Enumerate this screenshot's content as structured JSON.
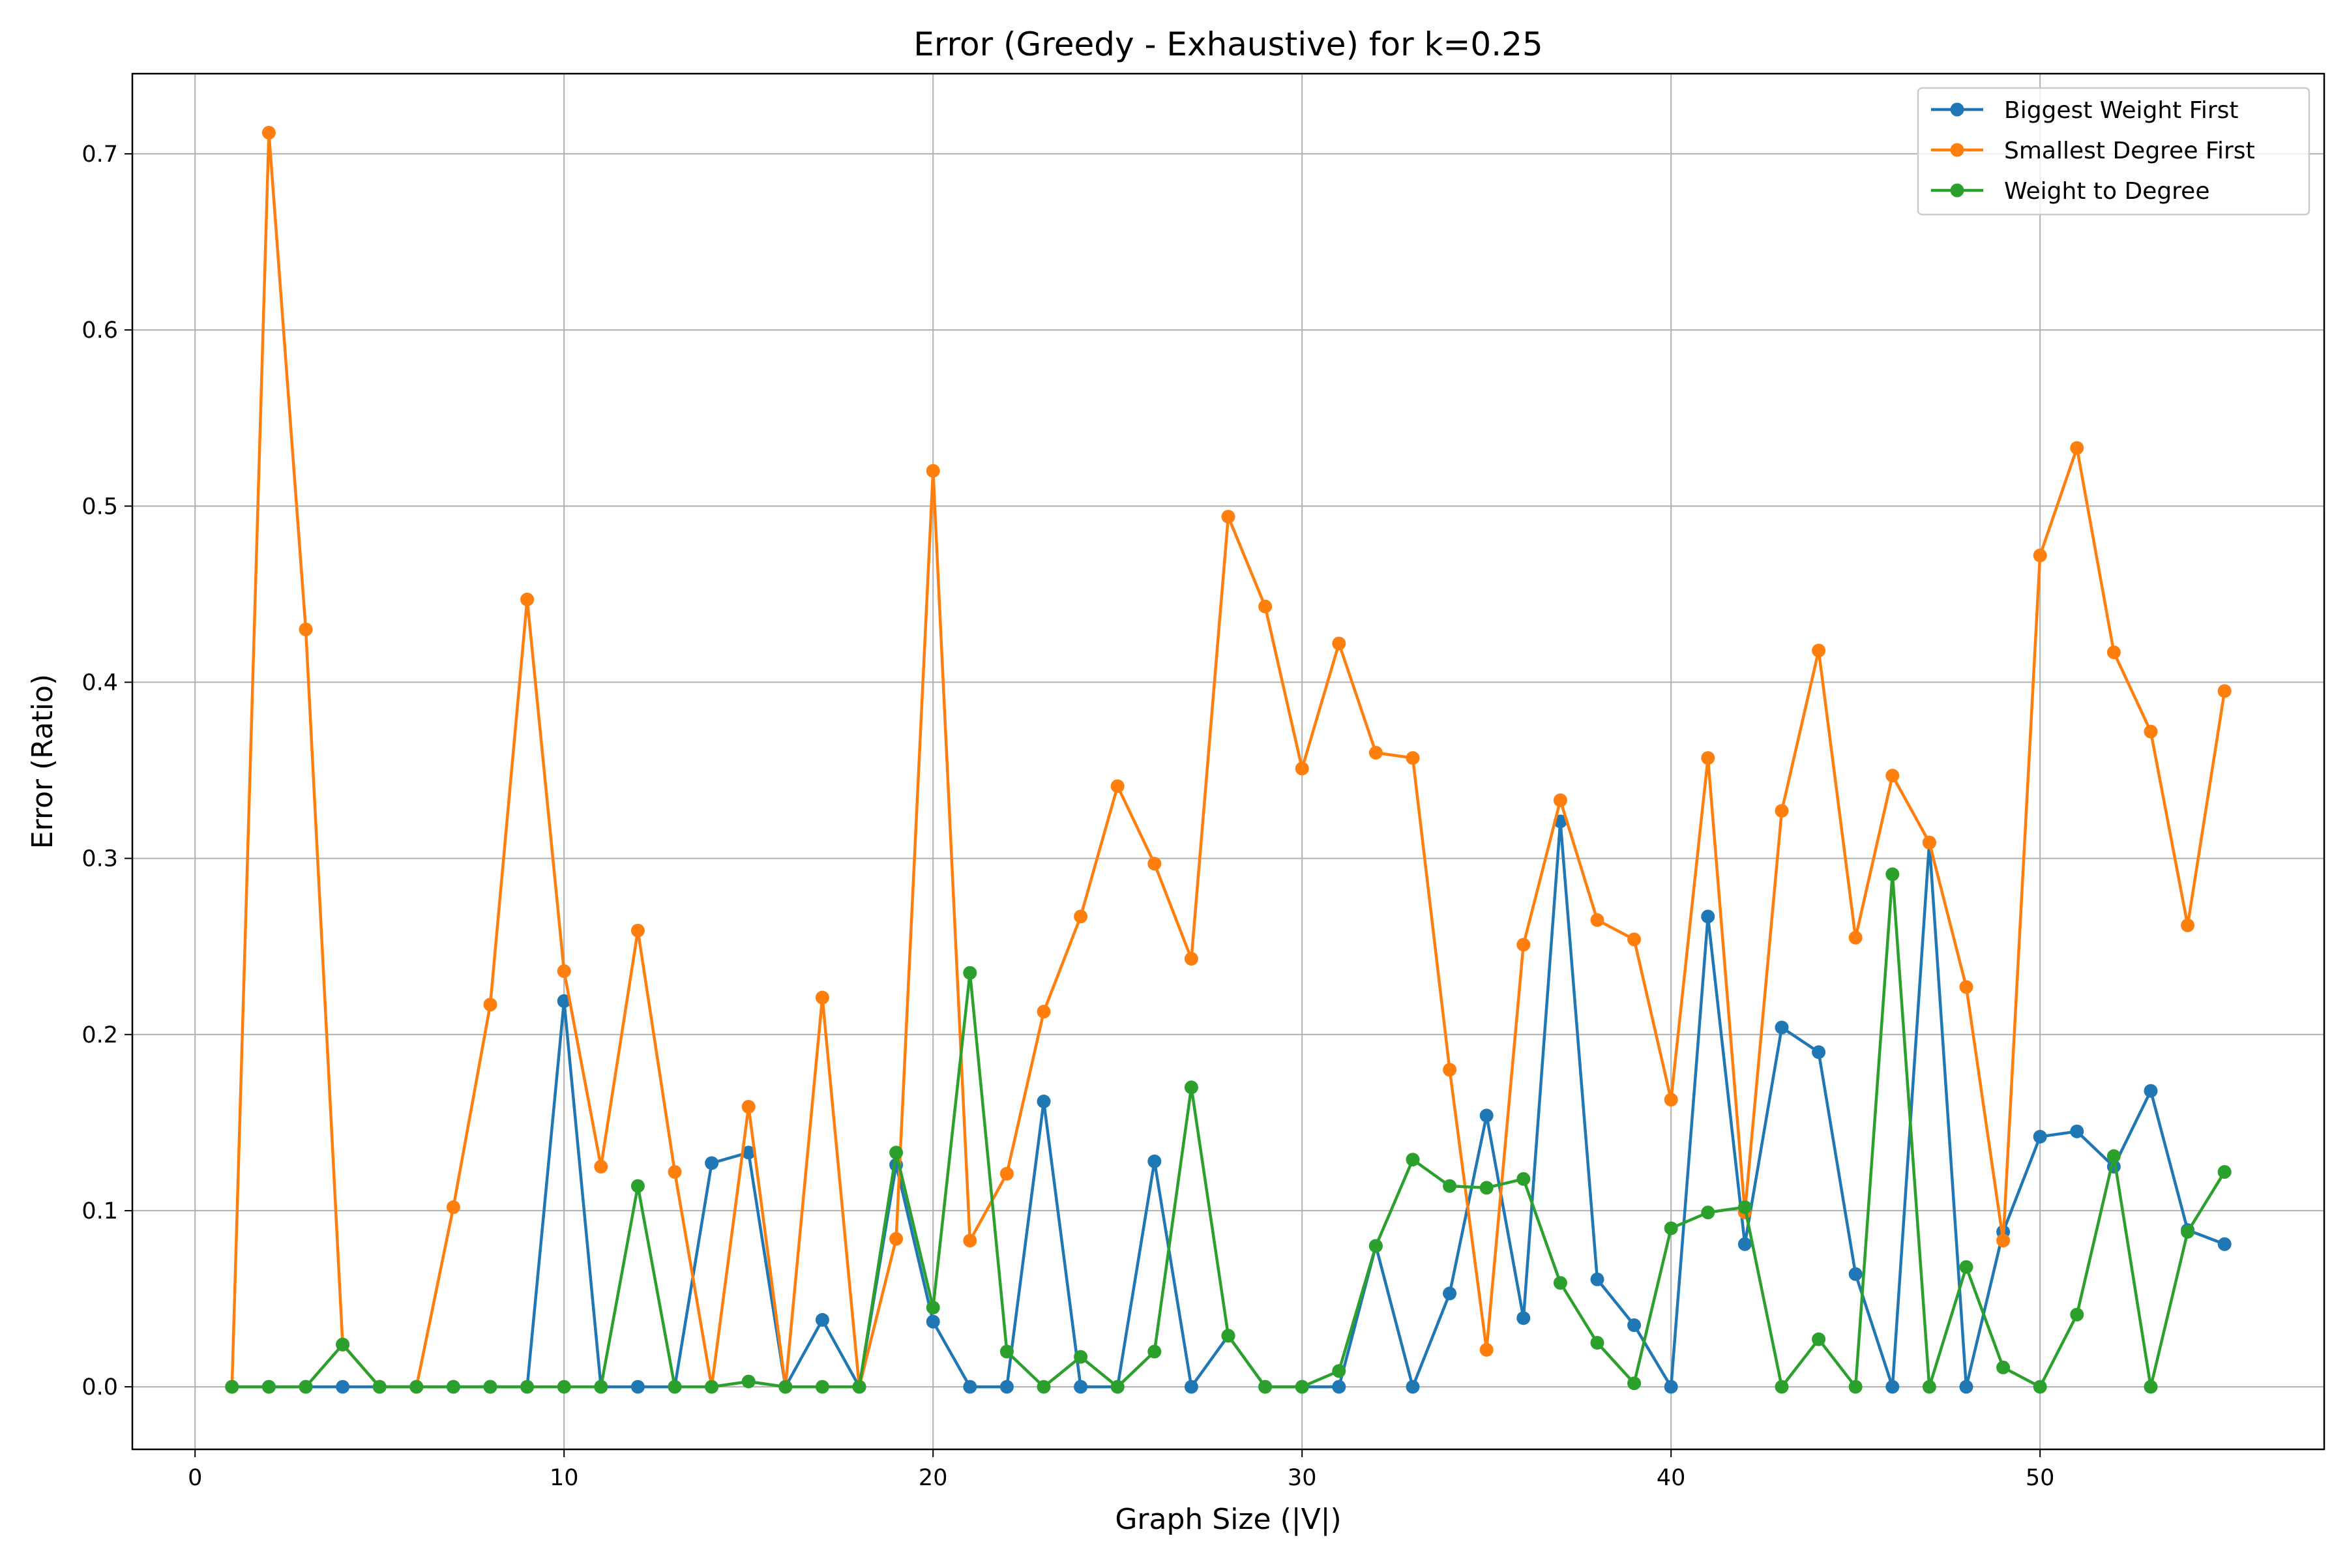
{
  "chart_data": {
    "type": "line",
    "title": "Error (Greedy - Exhaustive) for k=0.25",
    "xlabel": "Graph Size (|V|)",
    "ylabel": "Error (Ratio)",
    "xlim": [
      -1.7,
      57.7
    ],
    "ylim": [
      -0.0355,
      0.7455
    ],
    "xticks": [
      0,
      10,
      20,
      30,
      40,
      50
    ],
    "yticks": [
      0.0,
      0.1,
      0.2,
      0.3,
      0.4,
      0.5,
      0.6,
      0.7
    ],
    "xtick_labels": [
      "0",
      "10",
      "20",
      "30",
      "40",
      "50"
    ],
    "ytick_labels": [
      "0.0",
      "0.1",
      "0.2",
      "0.3",
      "0.4",
      "0.5",
      "0.6",
      "0.7"
    ],
    "grid": true,
    "legend_position": "top-right",
    "x": [
      1,
      2,
      3,
      4,
      5,
      6,
      7,
      8,
      9,
      10,
      11,
      12,
      13,
      14,
      15,
      16,
      17,
      18,
      19,
      20,
      21,
      22,
      23,
      24,
      25,
      26,
      27,
      28,
      29,
      30,
      31,
      32,
      33,
      34,
      35,
      36,
      37,
      38,
      39,
      40,
      41,
      42,
      43,
      44,
      45,
      46,
      47,
      48,
      49,
      50,
      51,
      52,
      53,
      54,
      55
    ],
    "series": [
      {
        "name": "Biggest Weight First",
        "color": "#1f77b4",
        "values": [
          0,
          0,
          0,
          0,
          0,
          0,
          0,
          0,
          0,
          0.219,
          0,
          0,
          0,
          0.127,
          0.133,
          0,
          0.038,
          0,
          0.126,
          0.037,
          0,
          0,
          0.162,
          0,
          0,
          0.128,
          0,
          0.029,
          0,
          0,
          0,
          0.08,
          0,
          0.053,
          0.154,
          0.039,
          0.321,
          0.061,
          0.035,
          0,
          0.267,
          0.081,
          0.204,
          0.19,
          0.064,
          0,
          0.309,
          0,
          0.088,
          0.142,
          0.145,
          0.125,
          0.168,
          0.089,
          0.081
        ]
      },
      {
        "name": "Smallest Degree First",
        "color": "#ff7f0e",
        "values": [
          0,
          0.712,
          0.43,
          0.024,
          0,
          0,
          0.102,
          0.217,
          0.447,
          0.236,
          0.125,
          0.259,
          0.122,
          0,
          0.159,
          0,
          0.221,
          0,
          0.084,
          0.52,
          0.083,
          0.121,
          0.213,
          0.267,
          0.341,
          0.297,
          0.243,
          0.494,
          0.443,
          0.351,
          0.422,
          0.36,
          0.357,
          0.18,
          0.021,
          0.251,
          0.333,
          0.265,
          0.254,
          0.163,
          0.357,
          0.099,
          0.327,
          0.418,
          0.255,
          0.347,
          0.309,
          0.227,
          0.083,
          0.472,
          0.533,
          0.417,
          0.372,
          0.262,
          0.395
        ]
      },
      {
        "name": "Weight to Degree",
        "color": "#2ca02c",
        "values": [
          0,
          0,
          0,
          0.024,
          0,
          0,
          0,
          0,
          0,
          0,
          0,
          0.114,
          0,
          0,
          0.003,
          0,
          0,
          0,
          0.133,
          0.045,
          0.235,
          0.02,
          0,
          0.017,
          0,
          0.02,
          0.17,
          0.029,
          0,
          0,
          0.009,
          0.08,
          0.129,
          0.114,
          0.113,
          0.118,
          0.059,
          0.025,
          0.002,
          0.09,
          0.099,
          0.102,
          0,
          0.027,
          0,
          0.291,
          0,
          0.068,
          0.011,
          0,
          0.041,
          0.131,
          0,
          0.088,
          0.122
        ]
      }
    ]
  }
}
